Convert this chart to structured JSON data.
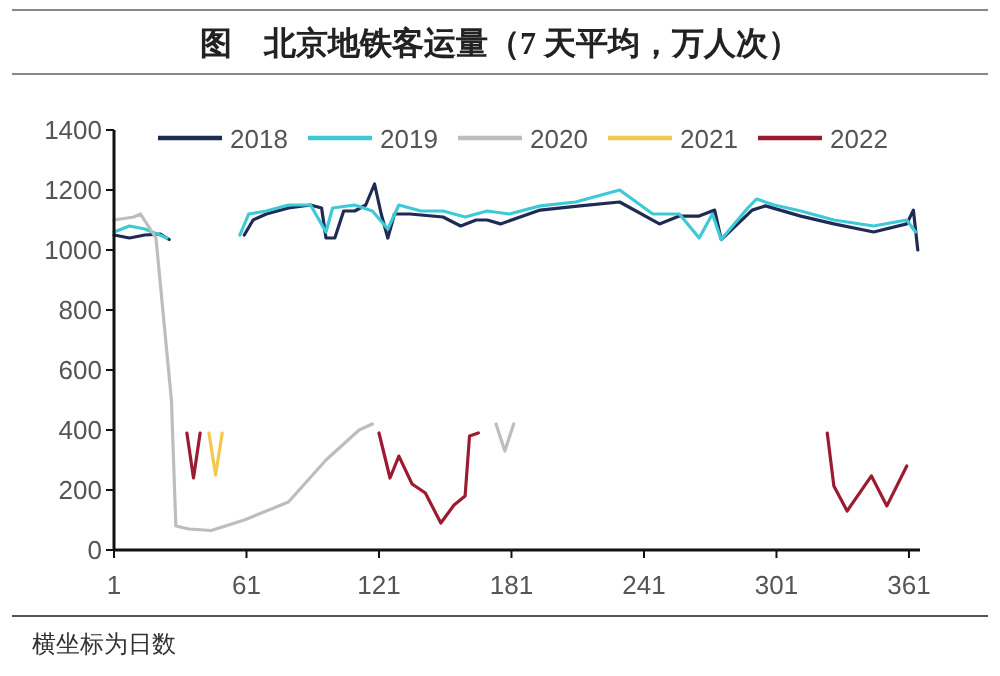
{
  "chart_data": {
    "type": "line",
    "title": "图　北京地铁客运量（7 天平均，万人次）",
    "annotations": [
      "横坐标为日数"
    ],
    "xlim": [
      1,
      366
    ],
    "ylim": [
      0,
      1400
    ],
    "xticks": [
      1,
      61,
      121,
      181,
      241,
      301,
      361
    ],
    "yticks": [
      0,
      200,
      400,
      600,
      800,
      1000,
      1200,
      1400
    ],
    "legend": "top",
    "series": [
      {
        "name": "2018",
        "color": "#1f2a55",
        "x": [
          1,
          8,
          15,
          22,
          26,
          40,
          60,
          64,
          70,
          80,
          90,
          95,
          97,
          101,
          105,
          110,
          115,
          119,
          122,
          125,
          128,
          135,
          150,
          158,
          165,
          170,
          176,
          194,
          212,
          230,
          248,
          257,
          266,
          273,
          276,
          290,
          296,
          312,
          327,
          345,
          360,
          363,
          365
        ],
        "values": [
          1050,
          1040,
          1050,
          1053,
          1035,
          null,
          1050,
          1100,
          1120,
          1140,
          1150,
          1140,
          1040,
          1040,
          1130,
          1130,
          1150,
          1220,
          1120,
          1040,
          1120,
          1120,
          1110,
          1080,
          1100,
          1100,
          1087,
          1133,
          1147,
          1160,
          1087,
          1113,
          1113,
          1133,
          1035,
          1133,
          1147,
          1113,
          1087,
          1060,
          1087,
          1133,
          1000
        ]
      },
      {
        "name": "2019",
        "color": "#3ec9d6",
        "x": [
          1,
          8,
          15,
          25,
          40,
          58,
          62,
          70,
          80,
          90,
          97,
          100,
          110,
          118,
          125,
          130,
          140,
          150,
          160,
          170,
          180,
          194,
          210,
          230,
          245,
          257,
          266,
          272,
          276,
          288,
          292,
          300,
          312,
          327,
          345,
          360,
          364
        ],
        "values": [
          1060,
          1080,
          1070,
          1040,
          null,
          1050,
          1120,
          1130,
          1150,
          1150,
          1060,
          1140,
          1150,
          1130,
          1070,
          1150,
          1130,
          1130,
          1110,
          1130,
          1120,
          1147,
          1160,
          1200,
          1120,
          1120,
          1040,
          1120,
          1035,
          1140,
          1170,
          1150,
          1130,
          1100,
          1080,
          1100,
          1060
        ]
      },
      {
        "name": "2020",
        "color": "#bdbdbd",
        "x": [
          1,
          10,
          13,
          20,
          27,
          29,
          35,
          45,
          60,
          80,
          97,
          112,
          118,
          150,
          174,
          178,
          182
        ],
        "values": [
          1100,
          1110,
          1120,
          1040,
          500,
          80,
          70,
          65,
          100,
          160,
          300,
          400,
          420,
          null,
          420,
          330,
          420
        ]
      },
      {
        "name": "2021",
        "color": "#f2c94c",
        "x": [
          44,
          47,
          50
        ],
        "values": [
          390,
          250,
          390
        ]
      },
      {
        "name": "2022",
        "color": "#9b1b30",
        "x": [
          34,
          37,
          40,
          80,
          121,
          126,
          130,
          136,
          142,
          149,
          155,
          160,
          162,
          166,
          250,
          324,
          327,
          333,
          344,
          351,
          360
        ],
        "values": [
          390,
          240,
          390,
          null,
          390,
          240,
          313,
          220,
          190,
          90,
          150,
          180,
          380,
          390,
          null,
          390,
          213,
          130,
          247,
          147,
          280
        ]
      }
    ]
  }
}
